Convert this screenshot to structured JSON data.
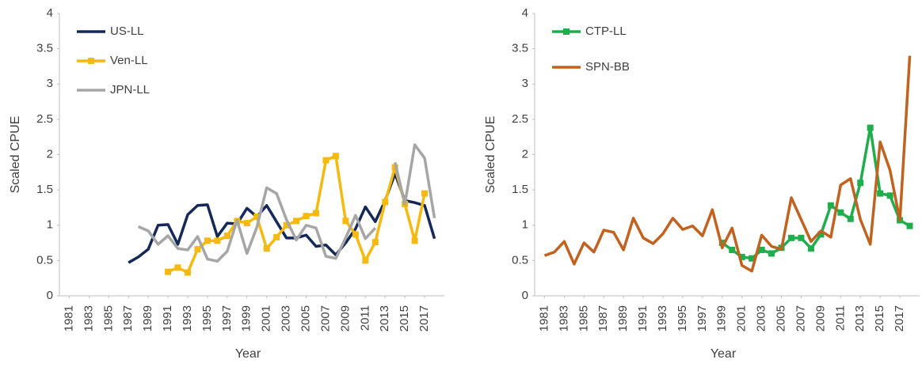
{
  "chart_data": [
    {
      "type": "line",
      "y_label": "Scaled CPUE",
      "x_label": "Year",
      "legend": "upper left",
      "x": [
        1981,
        1982,
        1983,
        1984,
        1985,
        1986,
        1987,
        1988,
        1989,
        1990,
        1991,
        1992,
        1993,
        1994,
        1995,
        1996,
        1997,
        1998,
        1999,
        2000,
        2001,
        2002,
        2003,
        2004,
        2005,
        2006,
        2007,
        2008,
        2009,
        2010,
        2011,
        2012,
        2013,
        2014,
        2015,
        2016,
        2017,
        2018
      ],
      "xlim": [
        1980,
        2019
      ],
      "xticks": [
        1981,
        1983,
        1985,
        1987,
        1989,
        1991,
        1993,
        1995,
        1997,
        1999,
        2001,
        2003,
        2005,
        2007,
        2009,
        2011,
        2013,
        2015,
        2017
      ],
      "ylim": [
        0,
        4
      ],
      "yticks": [
        0,
        0.5,
        1,
        1.5,
        2,
        2.5,
        3,
        3.5,
        4
      ],
      "series": [
        {
          "name": "US-LL",
          "color": "#14285a",
          "marker": "none",
          "values": [
            null,
            null,
            null,
            null,
            null,
            null,
            0.47,
            0.55,
            0.66,
            1.0,
            1.01,
            0.73,
            1.15,
            1.28,
            1.29,
            0.84,
            1.03,
            1.02,
            1.24,
            1.12,
            1.28,
            1.05,
            0.82,
            0.82,
            0.86,
            0.7,
            0.72,
            0.58,
            0.75,
            0.95,
            1.26,
            1.05,
            1.35,
            1.73,
            1.35,
            1.32,
            1.28,
            0.81
          ]
        },
        {
          "name": "Ven-LL",
          "color": "#f5b90f",
          "marker": "square",
          "values": [
            null,
            null,
            null,
            null,
            null,
            null,
            null,
            null,
            null,
            null,
            0.34,
            0.4,
            0.33,
            0.66,
            0.78,
            0.78,
            0.85,
            1.06,
            1.03,
            1.12,
            0.67,
            0.83,
            1.0,
            1.06,
            1.13,
            1.17,
            1.92,
            1.98,
            1.06,
            0.87,
            0.5,
            0.76,
            1.33,
            1.82,
            1.3,
            0.78,
            1.45,
            null
          ]
        },
        {
          "name": "JPN-LL",
          "color": "#a6a6a6",
          "marker": "none",
          "values": [
            null,
            null,
            null,
            null,
            null,
            null,
            null,
            0.98,
            0.92,
            0.73,
            0.85,
            0.67,
            0.65,
            0.84,
            0.52,
            0.49,
            0.63,
            1.07,
            0.6,
            0.97,
            1.53,
            1.45,
            1.08,
            0.79,
            1.0,
            0.96,
            0.56,
            0.53,
            0.82,
            1.14,
            0.81,
            0.96,
            null,
            1.89,
            1.3,
            2.14,
            1.95,
            1.1
          ]
        }
      ]
    },
    {
      "type": "line",
      "y_label": "Scaled CPUE",
      "x_label": "Year",
      "legend": "upper left",
      "x": [
        1981,
        1982,
        1983,
        1984,
        1985,
        1986,
        1987,
        1988,
        1989,
        1990,
        1991,
        1992,
        1993,
        1994,
        1995,
        1996,
        1997,
        1998,
        1999,
        2000,
        2001,
        2002,
        2003,
        2004,
        2005,
        2006,
        2007,
        2008,
        2009,
        2010,
        2011,
        2012,
        2013,
        2014,
        2015,
        2016,
        2017,
        2018
      ],
      "xlim": [
        1980,
        2019
      ],
      "xticks": [
        1981,
        1983,
        1985,
        1987,
        1989,
        1991,
        1993,
        1995,
        1997,
        1999,
        2001,
        2003,
        2005,
        2007,
        2009,
        2011,
        2013,
        2015,
        2017
      ],
      "ylim": [
        0,
        4
      ],
      "yticks": [
        0,
        0.5,
        1,
        1.5,
        2,
        2.5,
        3,
        3.5,
        4
      ],
      "series": [
        {
          "name": "CTP-LL",
          "color": "#1fae4c",
          "marker": "square",
          "values": [
            null,
            null,
            null,
            null,
            null,
            null,
            null,
            null,
            null,
            null,
            null,
            null,
            null,
            null,
            null,
            null,
            null,
            null,
            0.75,
            0.65,
            0.55,
            0.53,
            0.65,
            0.6,
            0.68,
            0.82,
            0.82,
            0.67,
            0.87,
            1.28,
            1.18,
            1.09,
            1.6,
            2.38,
            1.45,
            1.42,
            1.07,
            0.99
          ]
        },
        {
          "name": "SPN-BB",
          "color": "#c2621f",
          "marker": "none",
          "values": [
            0.57,
            0.62,
            0.77,
            0.45,
            0.75,
            0.62,
            0.93,
            0.9,
            0.65,
            1.1,
            0.82,
            0.74,
            0.88,
            1.1,
            0.94,
            0.99,
            0.85,
            1.22,
            0.68,
            0.96,
            0.43,
            0.35,
            0.86,
            0.7,
            0.66,
            1.39,
            1.08,
            0.77,
            0.92,
            0.83,
            1.57,
            1.66,
            1.08,
            0.73,
            2.18,
            1.78,
            1.07,
            3.4
          ]
        }
      ]
    }
  ]
}
